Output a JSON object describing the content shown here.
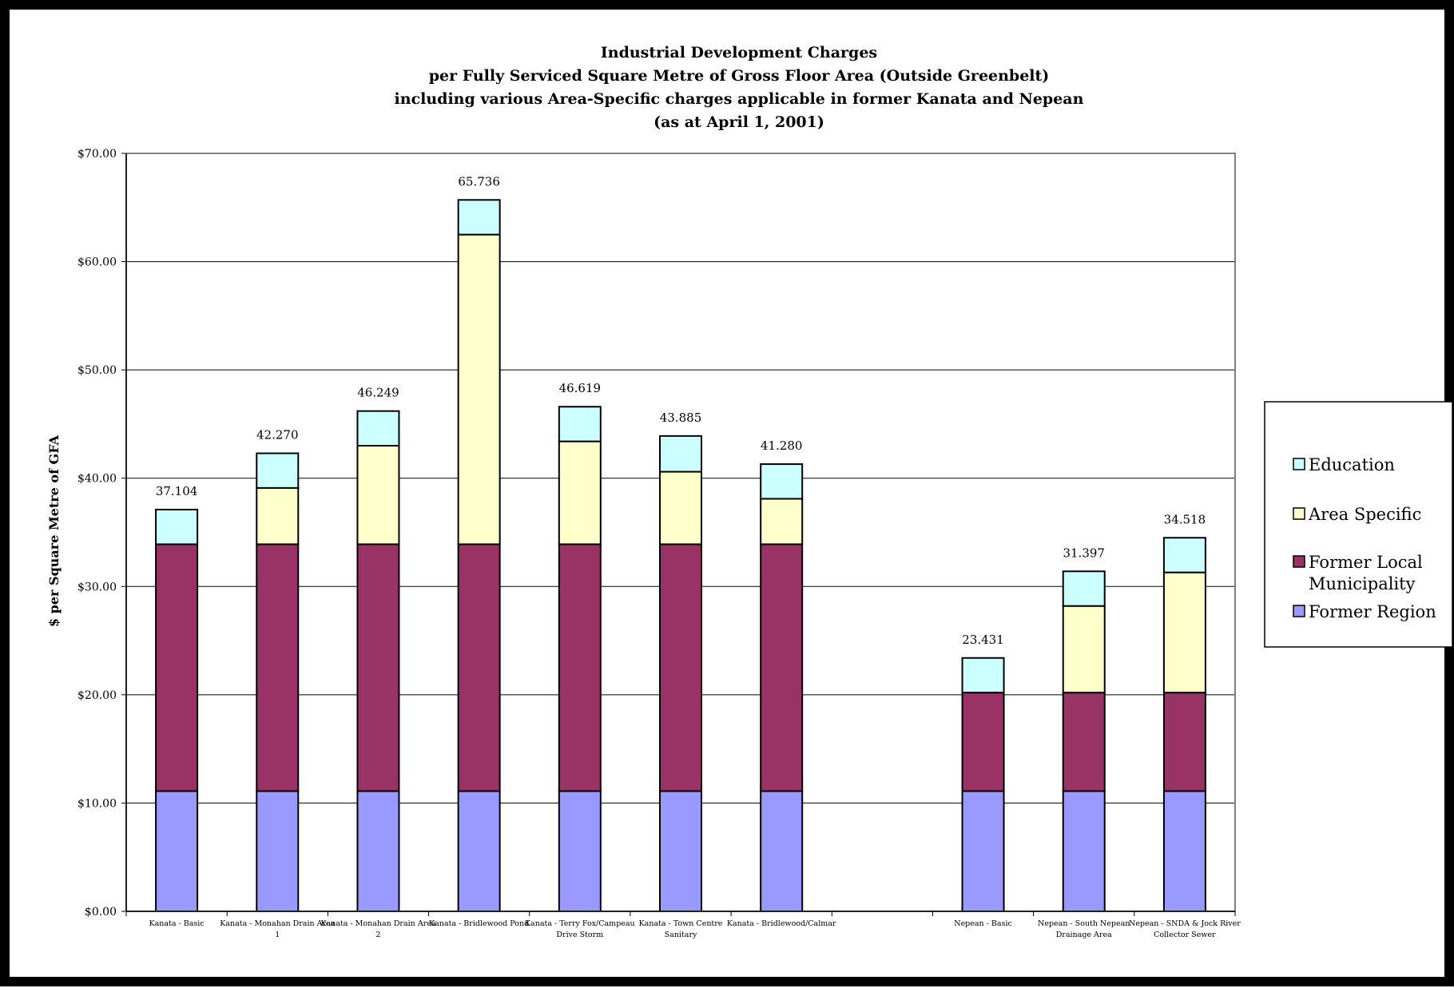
{
  "chart_data": {
    "type": "bar",
    "stacked": true,
    "title": [
      "Industrial Development Charges",
      "per Fully Serviced Square Metre of Gross Floor Area (Outside Greenbelt)",
      "including various Area-Specific charges applicable in former Kanata and Nepean",
      "(as at April 1, 2001)"
    ],
    "ylabel": "$ per Square Metre of GFA",
    "ylim": [
      0,
      70
    ],
    "yticks": [
      {
        "value": 0,
        "label": "$0.00"
      },
      {
        "value": 10,
        "label": "$10.00"
      },
      {
        "value": 20,
        "label": "$20.00"
      },
      {
        "value": 30,
        "label": "$30.00"
      },
      {
        "value": 40,
        "label": "$40.00"
      },
      {
        "value": 50,
        "label": "$50.00"
      },
      {
        "value": 60,
        "label": "$60.00"
      },
      {
        "value": 70,
        "label": "$70.00"
      }
    ],
    "grid": true,
    "legend_position": "right",
    "categories": [
      [
        "Kanata - Basic"
      ],
      [
        "Kanata - Monahan Drain Area",
        "1"
      ],
      [
        "Kanata - Monahan Drain Area",
        "2"
      ],
      [
        "Kanata - Bridlewood Pond"
      ],
      [
        "Kanata - Terry Fox/Campeau",
        "Drive Storm"
      ],
      [
        "Kanata - Town Centre",
        "Sanitary"
      ],
      [
        "Kanata - Bridlewood/Calmar"
      ],
      [
        ""
      ],
      [
        "Nepean - Basic"
      ],
      [
        "Nepean - South Nepean",
        "Drainage Area"
      ],
      [
        "Nepean - SNDA & Jock River",
        "Collector Sewer"
      ]
    ],
    "totals": [
      "37.104",
      "42.270",
      "46.249",
      "65.736",
      "46.619",
      "43.885",
      "41.280",
      "",
      "23.431",
      "31.397",
      "34.518"
    ],
    "series": [
      {
        "name": "Former Region",
        "color": "#9999ff",
        "values": [
          11.1,
          11.1,
          11.1,
          11.1,
          11.1,
          11.1,
          11.1,
          null,
          11.1,
          11.1,
          11.1
        ]
      },
      {
        "name": "Former Local Municipality",
        "color": "#993366",
        "values": [
          22.8,
          22.8,
          22.8,
          22.8,
          22.8,
          22.8,
          22.8,
          null,
          9.1,
          9.1,
          9.1
        ]
      },
      {
        "name": "Area Specific",
        "color": "#ffffcc",
        "values": [
          0,
          5.2,
          9.1,
          28.6,
          9.5,
          6.7,
          4.2,
          null,
          0,
          8.0,
          11.1
        ]
      },
      {
        "name": "Education",
        "color": "#ccffff",
        "values": [
          3.2,
          3.2,
          3.2,
          3.2,
          3.2,
          3.3,
          3.2,
          null,
          3.2,
          3.2,
          3.2
        ]
      }
    ],
    "legend_order": [
      {
        "series": 3,
        "lines": [
          "Education"
        ]
      },
      {
        "series": 2,
        "lines": [
          "Area Specific"
        ]
      },
      {
        "series": 1,
        "lines": [
          "Former Local",
          "Municipality"
        ]
      },
      {
        "series": 0,
        "lines": [
          "Former Region"
        ]
      }
    ]
  }
}
